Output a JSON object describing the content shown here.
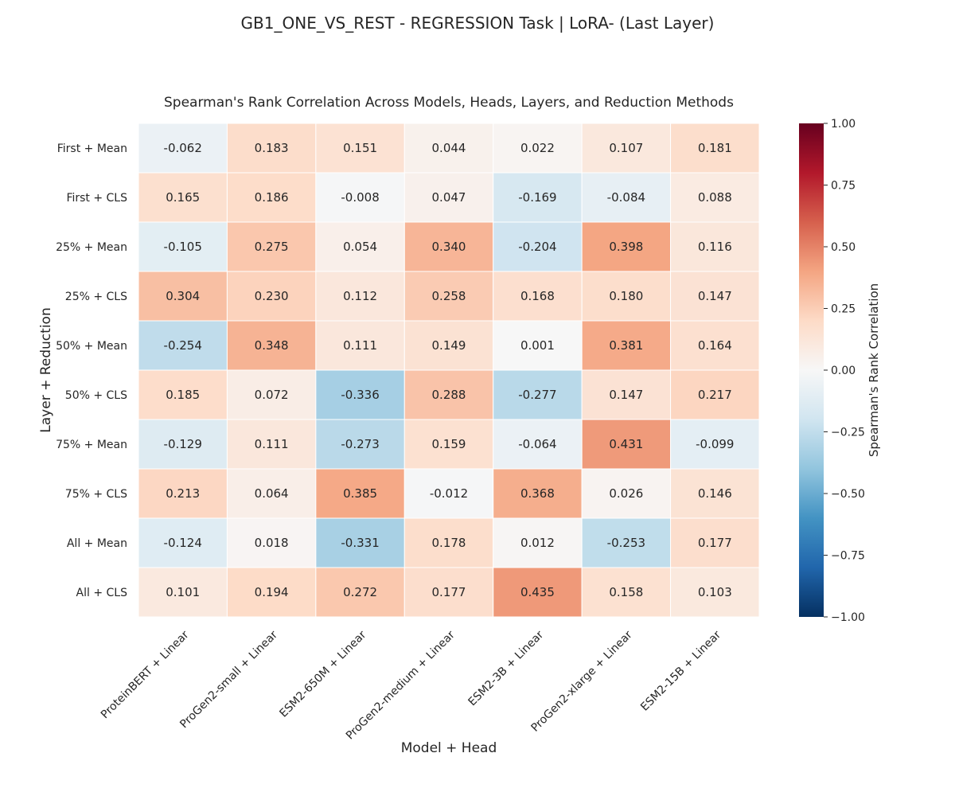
{
  "suptitle": "GB1_ONE_VS_REST - REGRESSION Task | LoRA- (Last Layer)",
  "chart_data": {
    "type": "heatmap",
    "title": "Spearman's Rank Correlation Across Models, Heads, Layers, and Reduction Methods",
    "xlabel": "Model + Head",
    "ylabel": "Layer + Reduction",
    "x_categories": [
      "ProteinBERT + Linear",
      "ProGen2-small + Linear",
      "ESM2-650M + Linear",
      "ProGen2-medium + Linear",
      "ESM2-3B + Linear",
      "ProGen2-xlarge + Linear",
      "ESM2-15B + Linear"
    ],
    "y_categories": [
      "First + Mean",
      "First + CLS",
      "25% + Mean",
      "25% + CLS",
      "50% + Mean",
      "50% + CLS",
      "75% + Mean",
      "75% + CLS",
      "All + Mean",
      "All + CLS"
    ],
    "values": [
      [
        -0.062,
        0.183,
        0.151,
        0.044,
        0.022,
        0.107,
        0.181
      ],
      [
        0.165,
        0.186,
        -0.008,
        0.047,
        -0.169,
        -0.084,
        0.088
      ],
      [
        -0.105,
        0.275,
        0.054,
        0.34,
        -0.204,
        0.398,
        0.116
      ],
      [
        0.304,
        0.23,
        0.112,
        0.258,
        0.168,
        0.18,
        0.147
      ],
      [
        -0.254,
        0.348,
        0.111,
        0.149,
        0.001,
        0.381,
        0.164
      ],
      [
        0.185,
        0.072,
        -0.336,
        0.288,
        -0.277,
        0.147,
        0.217
      ],
      [
        -0.129,
        0.111,
        -0.273,
        0.159,
        -0.064,
        0.431,
        -0.099
      ],
      [
        0.213,
        0.064,
        0.385,
        -0.012,
        0.368,
        0.026,
        0.146
      ],
      [
        -0.124,
        0.018,
        -0.331,
        0.178,
        0.012,
        -0.253,
        0.177
      ],
      [
        0.101,
        0.194,
        0.272,
        0.177,
        0.435,
        0.158,
        0.103
      ]
    ],
    "value_labels": [
      [
        "-0.062",
        "0.183",
        "0.151",
        "0.044",
        "0.022",
        "0.107",
        "0.181"
      ],
      [
        "0.165",
        "0.186",
        "-0.008",
        "0.047",
        "-0.169",
        "-0.084",
        "0.088"
      ],
      [
        "-0.105",
        "0.275",
        "0.054",
        "0.340",
        "-0.204",
        "0.398",
        "0.116"
      ],
      [
        "0.304",
        "0.230",
        "0.112",
        "0.258",
        "0.168",
        "0.180",
        "0.147"
      ],
      [
        "-0.254",
        "0.348",
        "0.111",
        "0.149",
        "0.001",
        "0.381",
        "0.164"
      ],
      [
        "0.185",
        "0.072",
        "-0.336",
        "0.288",
        "-0.277",
        "0.147",
        "0.217"
      ],
      [
        "-0.129",
        "0.111",
        "-0.273",
        "0.159",
        "-0.064",
        "0.431",
        "-0.099"
      ],
      [
        "0.213",
        "0.064",
        "0.385",
        "-0.012",
        "0.368",
        "0.026",
        "0.146"
      ],
      [
        "-0.124",
        "0.018",
        "-0.331",
        "0.178",
        "0.012",
        "-0.253",
        "0.177"
      ],
      [
        "0.101",
        "0.194",
        "0.272",
        "0.177",
        "0.435",
        "0.158",
        "0.103"
      ]
    ],
    "colorbar": {
      "label": "Spearman's Rank Correlation",
      "range": [
        -1.0,
        1.0
      ],
      "ticks": [
        1.0,
        0.75,
        0.5,
        0.25,
        0.0,
        -0.25,
        -0.5,
        -0.75,
        -1.0
      ],
      "tick_labels": [
        "1.00",
        "0.75",
        "0.50",
        "0.25",
        "0.00",
        "−0.25",
        "−0.50",
        "−0.75",
        "−1.00"
      ],
      "colormap": "RdBu_r",
      "colors": [
        "#053061",
        "#2166ac",
        "#4393c3",
        "#92c5de",
        "#d1e5f0",
        "#f7f7f7",
        "#fddbc7",
        "#f4a582",
        "#d6604d",
        "#b2182b",
        "#67001f"
      ]
    }
  }
}
